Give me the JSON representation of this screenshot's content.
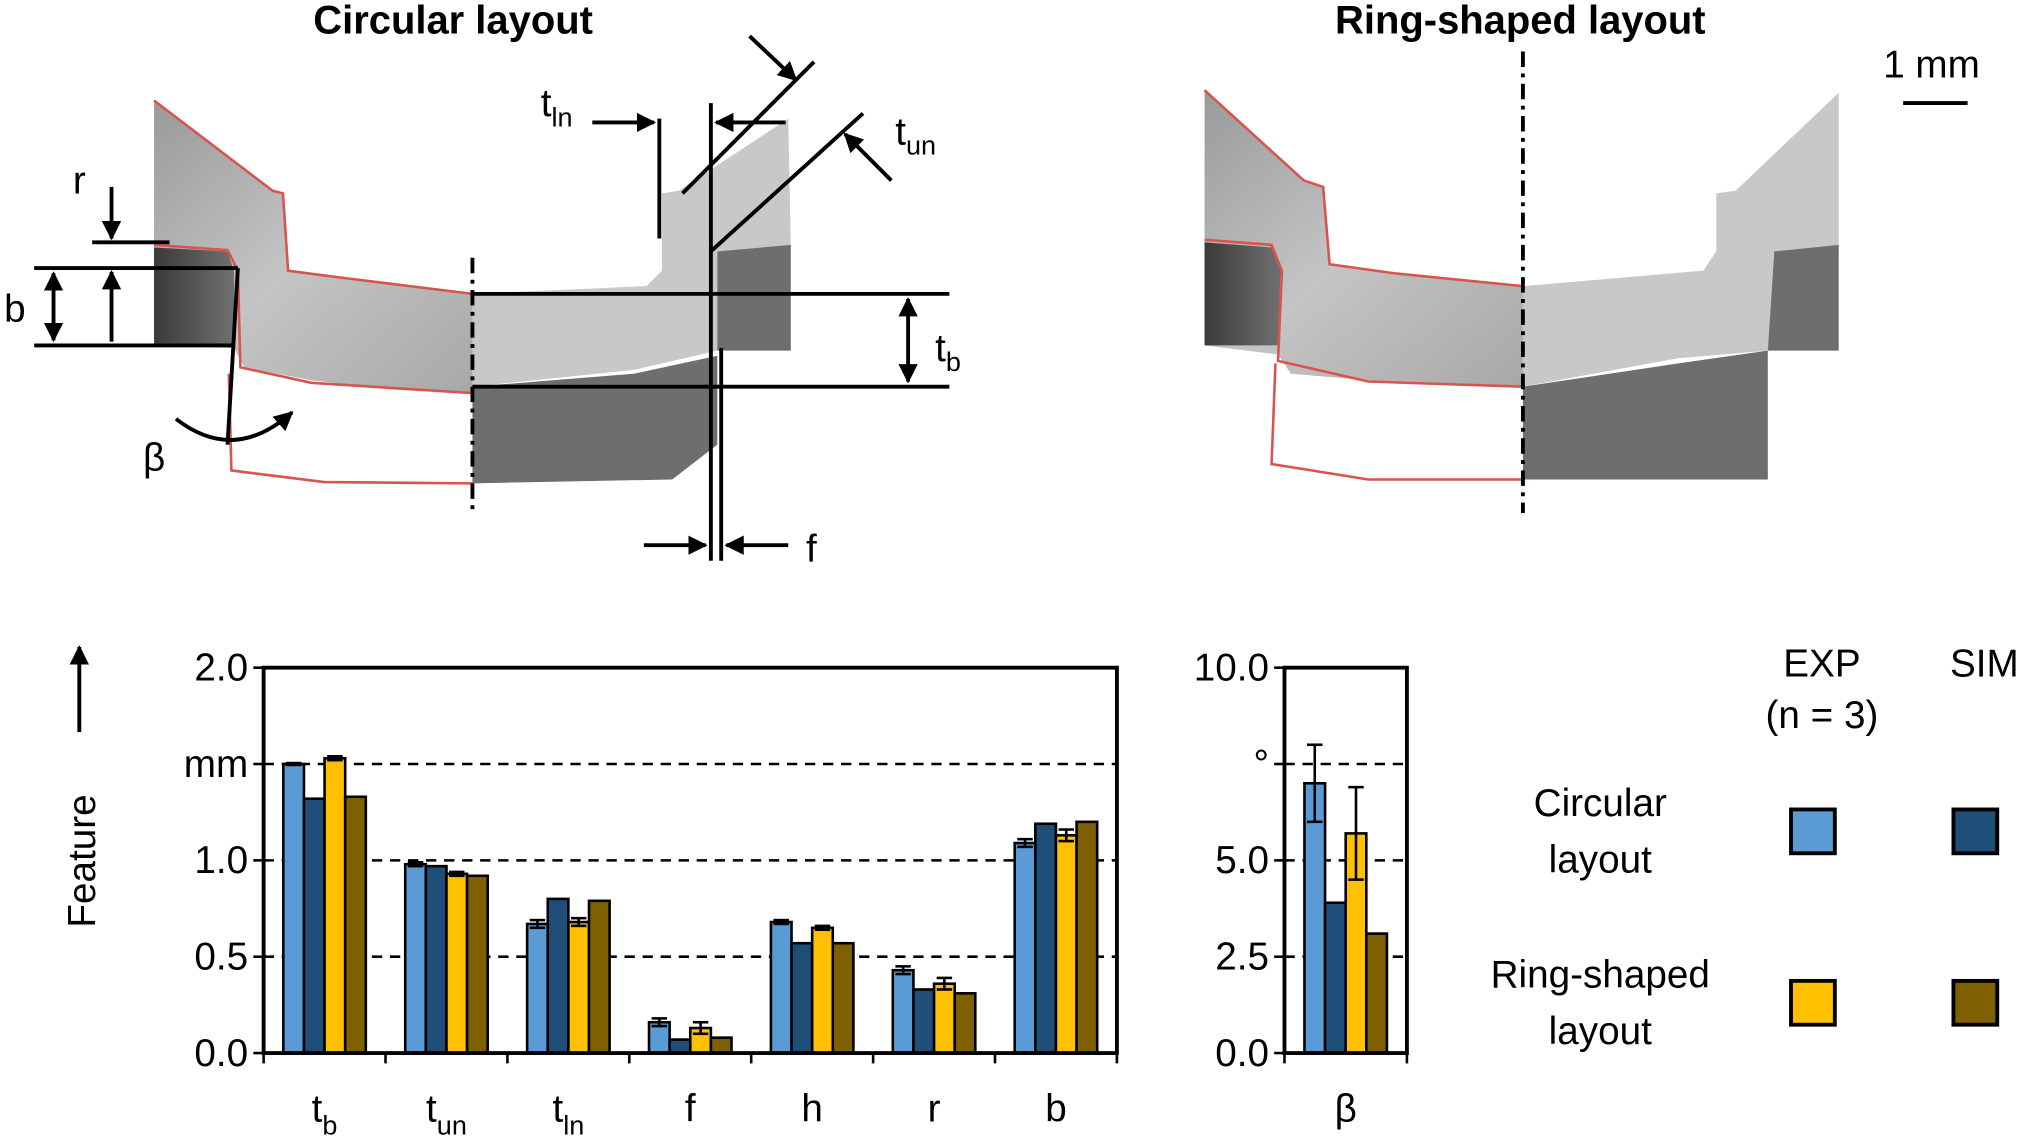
{
  "figure": {
    "titles": [
      "Circular layout",
      "Ring-shaped layout"
    ],
    "scale_bar": "1 mm",
    "annotations": [
      [
        "r"
      ],
      [
        "b"
      ],
      [
        "β"
      ],
      [
        "f"
      ],
      [
        "t",
        "ln"
      ],
      [
        "t",
        "un"
      ],
      [
        "t",
        "b"
      ]
    ]
  },
  "chart_data": [
    {
      "type": "bar",
      "ylabel": "Feature",
      "categories": [
        "tb",
        "tun",
        "tln",
        "f",
        "h",
        "r",
        "b"
      ],
      "series": [
        {
          "color": "#5b9bd5",
          "values": [
            1.5,
            0.98,
            0.67,
            0.16,
            0.68,
            0.43,
            1.09
          ],
          "errors": [
            0.005,
            0.01,
            0.02,
            0.02,
            0.01,
            0.02,
            0.02
          ]
        },
        {
          "color": "#1f4e79",
          "values": [
            1.32,
            0.97,
            0.8,
            0.07,
            0.57,
            0.33,
            1.19
          ]
        },
        {
          "color": "#ffc000",
          "values": [
            1.53,
            0.93,
            0.68,
            0.13,
            0.65,
            0.36,
            1.13
          ],
          "errors": [
            0.01,
            0.01,
            0.02,
            0.03,
            0.01,
            0.03,
            0.03
          ]
        },
        {
          "color": "#7f6000",
          "values": [
            1.33,
            0.92,
            0.79,
            0.08,
            0.57,
            0.31,
            1.2
          ]
        }
      ],
      "ylim": [
        0,
        2
      ],
      "yticks": [
        {
          "value": 0,
          "label": "0.0"
        },
        0.5,
        {
          "value": 1,
          "label": "1.0"
        },
        {
          "value": 1.5,
          "label": "mm"
        },
        {
          "value": 2,
          "label": "2.0"
        }
      ],
      "grid": "dashed"
    },
    {
      "type": "bar",
      "categories": [
        "β"
      ],
      "series": [
        {
          "color": "#5b9bd5",
          "values": [
            7.0
          ],
          "errors": [
            1.0
          ]
        },
        {
          "color": "#1f4e79",
          "values": [
            3.9
          ]
        },
        {
          "color": "#ffc000",
          "values": [
            5.7
          ],
          "errors": [
            1.2
          ]
        },
        {
          "color": "#7f6000",
          "values": [
            3.1
          ]
        }
      ],
      "ylim": [
        0,
        10
      ],
      "yticks": [
        {
          "value": 0,
          "label": "0.0"
        },
        2.5,
        {
          "value": 5,
          "label": "5.0"
        },
        {
          "value": 7.5,
          "label": "°"
        },
        {
          "value": 10,
          "label": "10.0"
        }
      ],
      "grid": "dashed"
    }
  ],
  "legend": {
    "columns": [
      [
        "EXP",
        "(n = 3)"
      ],
      [
        "SIM"
      ]
    ],
    "rows": [
      [
        "Circular",
        "layout"
      ],
      [
        "Ring-shaped",
        "layout"
      ]
    ]
  }
}
